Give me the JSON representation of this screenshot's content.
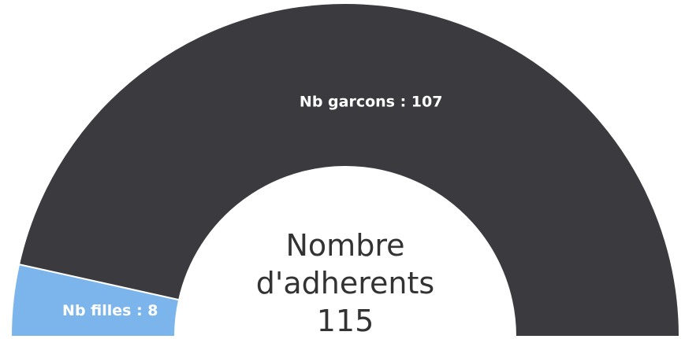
{
  "chart_data": {
    "type": "semi-donut",
    "title": "Nombre d'adherents",
    "total": 115,
    "values": [
      8,
      107
    ],
    "value_labels": [
      "Nb filles : 8",
      "Nb garcons : 107"
    ],
    "colors": [
      "#7cb5ec",
      "#3b3b3f"
    ]
  }
}
